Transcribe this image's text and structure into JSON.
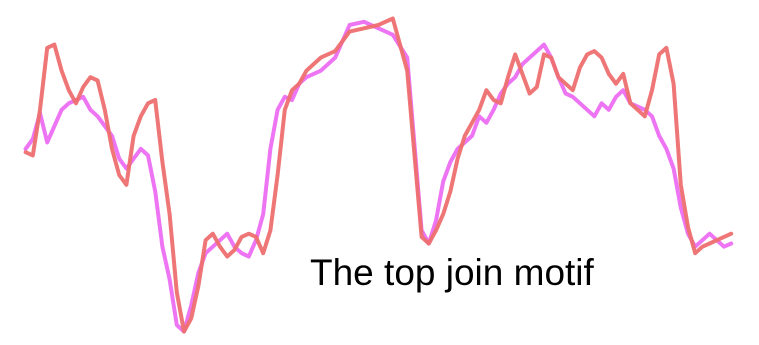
{
  "caption": "The top join motif",
  "colors": {
    "series_a": "#ee6f6f",
    "series_b": "#ec6ef2",
    "background": "#ffffff",
    "text": "#000000"
  },
  "chart_data": {
    "type": "line",
    "grid": false,
    "axes_shown": false,
    "xlim": [
      0,
      100
    ],
    "ylim": [
      0,
      100
    ],
    "series": [
      {
        "color": "#ee6f6f",
        "x": [
          0.5,
          1.5,
          2.5,
          3.5,
          4.5,
          5.5,
          6.5,
          7.5,
          8.5,
          9.5,
          10.5,
          11.5,
          12.5,
          13.5,
          14.5,
          15.5,
          16.5,
          17.5,
          18.5,
          19.5,
          20.5,
          21.5,
          22.5,
          23.5,
          24.5,
          25.5,
          26.5,
          27.5,
          28.5,
          29.5,
          30.5,
          31.5,
          32.5,
          33.5,
          34.5,
          35.5,
          36.5,
          37.5,
          38.5,
          39.5,
          41.5,
          43.5,
          45.5,
          47.5,
          49.5,
          51.5,
          53.5,
          55.5,
          56.5,
          57.5,
          58.5,
          59.5,
          60.5,
          61.5,
          62.5,
          63.5,
          64.5,
          65.5,
          66.5,
          67.5,
          68.5,
          69.5,
          70.5,
          71.5,
          72.5,
          73.5,
          74.5,
          75.5,
          76.5,
          77.5,
          78.5,
          79.5,
          80.5,
          81.5,
          82.5,
          83.5,
          84.5,
          85.5,
          86.5,
          87.5,
          88.5,
          89.5,
          90.5,
          91.5,
          92.5,
          93.5,
          94.5,
          95.5,
          96.5,
          97.5,
          98.5
        ],
        "y": [
          57,
          56,
          70,
          89,
          90,
          82,
          76,
          72,
          77,
          80,
          79,
          70,
          58,
          50,
          47,
          62,
          68,
          72,
          73,
          54,
          38,
          14,
          2,
          6,
          16,
          30,
          32,
          28,
          25,
          27,
          31,
          32,
          31,
          26,
          33,
          50,
          70,
          76,
          78,
          82,
          86,
          88,
          94,
          95,
          96,
          98,
          82,
          31,
          29,
          33,
          38,
          45,
          55,
          62,
          66,
          70,
          76,
          73,
          72,
          80,
          87,
          81,
          75,
          77,
          87,
          86,
          80,
          78,
          76,
          83,
          87,
          88,
          86,
          81,
          78,
          81,
          72,
          70,
          68,
          76,
          87,
          89,
          78,
          47,
          34,
          26,
          28,
          29,
          30,
          31,
          32
        ]
      },
      {
        "color": "#ec6ef2",
        "x": [
          0.5,
          1.5,
          2.5,
          3.5,
          4.5,
          5.5,
          6.5,
          7.5,
          8.5,
          9.5,
          10.5,
          11.5,
          12.5,
          13.5,
          14.5,
          15.5,
          16.5,
          17.5,
          18.5,
          19.5,
          20.5,
          21.5,
          22.5,
          23.5,
          24.5,
          25.5,
          26.5,
          27.5,
          28.5,
          29.5,
          30.5,
          31.5,
          32.5,
          33.5,
          34.5,
          35.5,
          36.5,
          37.5,
          38.5,
          39.5,
          41.5,
          43.5,
          45.5,
          47.5,
          49.5,
          51.5,
          53.5,
          55.5,
          56.5,
          57.5,
          58.5,
          59.5,
          60.5,
          61.5,
          62.5,
          63.5,
          64.5,
          65.5,
          66.5,
          67.5,
          68.5,
          69.5,
          70.5,
          71.5,
          72.5,
          73.5,
          74.5,
          75.5,
          76.5,
          77.5,
          78.5,
          79.5,
          80.5,
          81.5,
          82.5,
          83.5,
          84.5,
          85.5,
          86.5,
          87.5,
          88.5,
          89.5,
          90.5,
          91.5,
          92.5,
          93.5,
          94.5,
          95.5,
          96.5,
          97.5,
          98.5
        ],
        "y": [
          58,
          61,
          69,
          60,
          65,
          70,
          72,
          73,
          74,
          70,
          68,
          65,
          62,
          55,
          52,
          55,
          58,
          56,
          45,
          28,
          18,
          4,
          2,
          10,
          20,
          26,
          28,
          30,
          32,
          28,
          26,
          25,
          30,
          38,
          58,
          70,
          74,
          73,
          78,
          80,
          82,
          86,
          96,
          97,
          95,
          93,
          86,
          33,
          29,
          36,
          48,
          54,
          58,
          60,
          62,
          68,
          66,
          70,
          75,
          78,
          80,
          84,
          86,
          88,
          90,
          86,
          80,
          75,
          74,
          72,
          70,
          68,
          72,
          70,
          74,
          76,
          72,
          71,
          70,
          68,
          62,
          58,
          52,
          40,
          32,
          28,
          30,
          32,
          30,
          28,
          29
        ]
      }
    ]
  }
}
